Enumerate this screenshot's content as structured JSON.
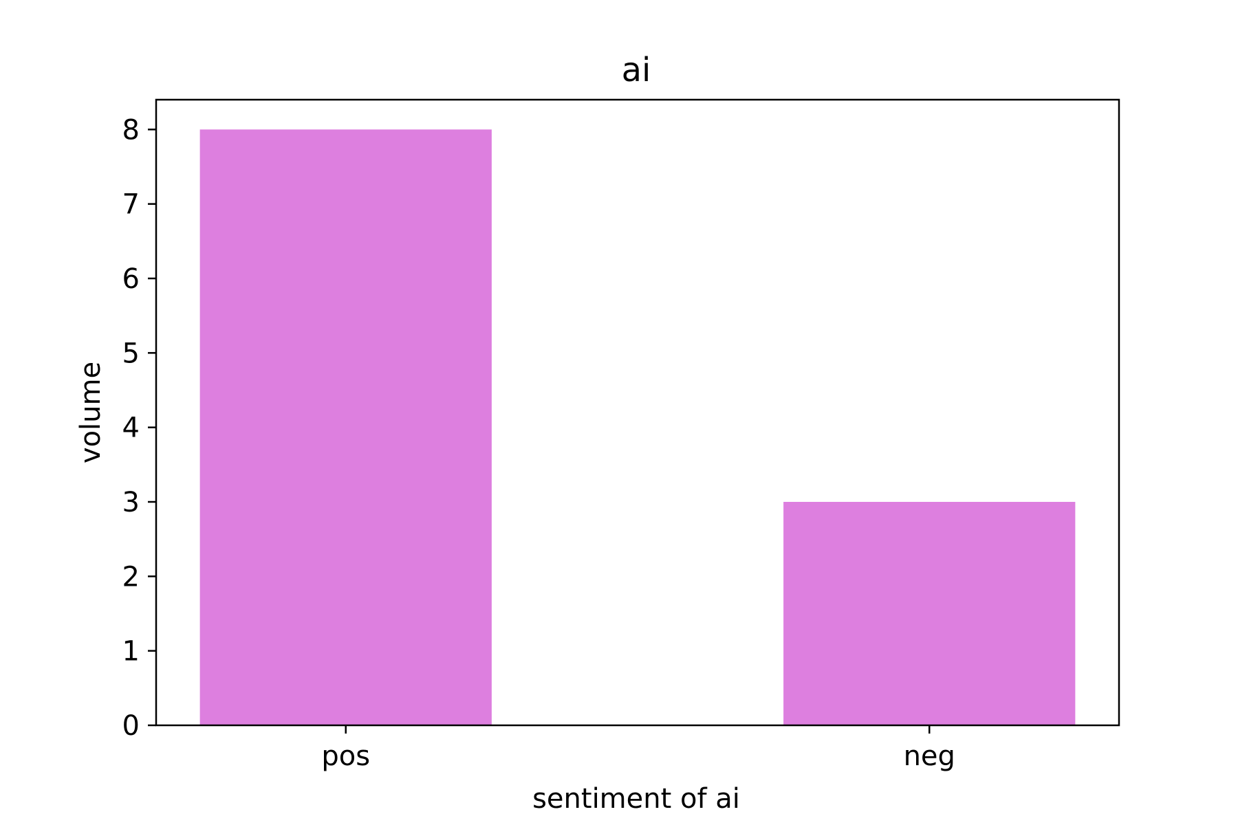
{
  "chart_data": {
    "type": "bar",
    "title": "ai",
    "xlabel": "sentiment of ai",
    "ylabel": "volume",
    "categories": [
      "pos",
      "neg"
    ],
    "values": [
      8,
      3
    ],
    "ylim": [
      0,
      8.4
    ],
    "yticks": [
      "0",
      "1",
      "2",
      "3",
      "4",
      "5",
      "6",
      "7",
      "8"
    ],
    "grid": false,
    "legend": "none",
    "bar_color": "#dd7fdf",
    "axis_color": "#000000"
  }
}
